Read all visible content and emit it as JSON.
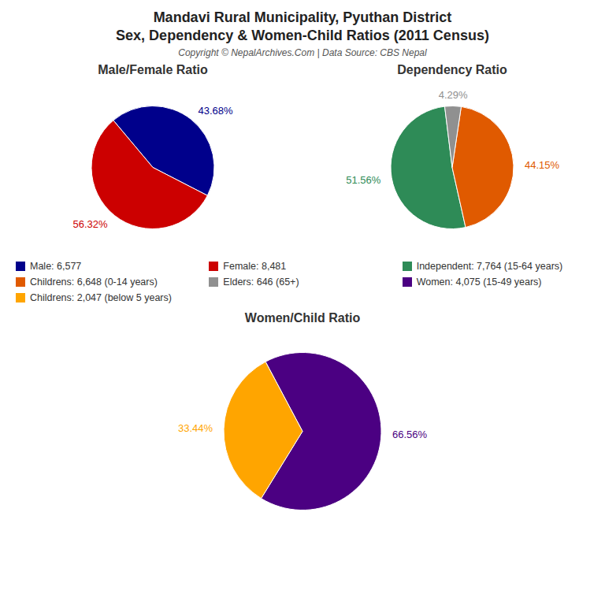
{
  "title": "Mandavi Rural Municipality, Pyuthan District",
  "subtitle": "Sex, Dependency & Women-Child Ratios (2011 Census)",
  "annotations": [
    "Copyright © NepalArchives.Com | Data Source: CBS Nepal"
  ],
  "legend": "center",
  "chart_data": [
    {
      "type": "pie",
      "title": "Male/Female Ratio",
      "categories": [
        "Male: 6,577",
        "Female: 8,481"
      ],
      "values": [
        43.68,
        56.32
      ],
      "value_labels": [
        "43.68%",
        "56.32%"
      ],
      "colors": [
        "#00008B",
        "#CC0000"
      ],
      "data_labels": true
    },
    {
      "type": "pie",
      "title": "Dependency Ratio",
      "categories": [
        "Independent: 7,764 (15-64 years)",
        "Childrens: 6,648 (0-14 years)",
        "Elders: 646 (65+)"
      ],
      "values": [
        51.56,
        44.15,
        4.29
      ],
      "value_labels": [
        "51.56%",
        "44.15%",
        "4.29%"
      ],
      "colors": [
        "#2E8B57",
        "#E05A00",
        "#909090"
      ],
      "data_labels": true
    },
    {
      "type": "pie",
      "title": "Women/Child Ratio",
      "categories": [
        "Women: 4,075 (15-49 years)",
        "Childrens: 2,047 (below 5 years)"
      ],
      "values": [
        66.56,
        33.44
      ],
      "value_labels": [
        "66.56%",
        "33.44%"
      ],
      "colors": [
        "#4B0082",
        "#FFA500"
      ],
      "data_labels": true
    }
  ]
}
